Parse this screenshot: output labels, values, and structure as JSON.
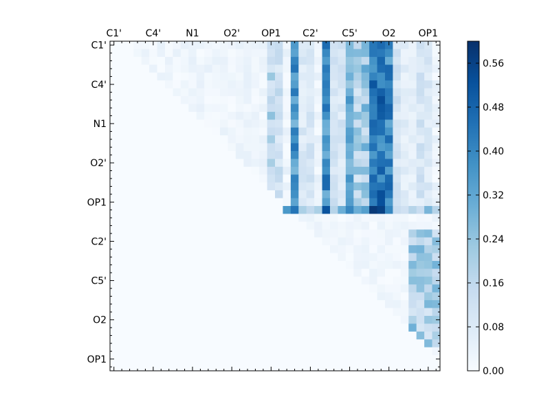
{
  "chart_data": {
    "type": "heatmap",
    "title": "",
    "xlabel": "",
    "ylabel": "",
    "grid_size": 42,
    "x_tick_labels": [
      "C1'",
      "C4'",
      "N1",
      "O2'",
      "OP1",
      "C2'",
      "C5'",
      "O2",
      "OP1"
    ],
    "y_tick_labels": [
      "C1'",
      "C4'",
      "N1",
      "O2'",
      "OP1",
      "C2'",
      "C5'",
      "O2",
      "OP1"
    ],
    "label_every": 5,
    "colorbar": {
      "ticks": [
        0.0,
        0.08,
        0.16,
        0.24,
        0.32,
        0.4,
        0.48,
        0.56
      ],
      "tick_labels": [
        "0.00",
        "0.08",
        "0.16",
        "0.24",
        "0.32",
        "0.40",
        "0.48",
        "0.56"
      ],
      "range": [
        0,
        0.6
      ],
      "colormap": "Blues",
      "stops": [
        "#f7fbff",
        "#deebf7",
        "#c6dbef",
        "#9ecae1",
        "#6baed6",
        "#4292c6",
        "#2171b5",
        "#08519c",
        "#08306b"
      ]
    },
    "value_range": [
      0,
      0.6
    ],
    "strong_columns": [
      {
        "col": 23,
        "value": 0.36
      },
      {
        "col": 27,
        "value": 0.38
      },
      {
        "col": 30,
        "value": 0.3
      },
      {
        "col": 33,
        "value": 0.42
      },
      {
        "col": 34,
        "value": 0.44
      },
      {
        "col": 35,
        "value": 0.4
      }
    ],
    "mid_columns": [
      {
        "col": 20,
        "value": 0.18
      },
      {
        "col": 21,
        "value": 0.12
      },
      {
        "col": 24,
        "value": 0.08
      },
      {
        "col": 25,
        "value": 0.1
      },
      {
        "col": 28,
        "value": 0.1
      },
      {
        "col": 29,
        "value": 0.09
      },
      {
        "col": 31,
        "value": 0.18
      },
      {
        "col": 32,
        "value": 0.22
      },
      {
        "col": 36,
        "value": 0.1
      },
      {
        "col": 37,
        "value": 0.06
      },
      {
        "col": 38,
        "value": 0.05
      },
      {
        "col": 39,
        "value": 0.1
      },
      {
        "col": 40,
        "value": 0.08
      }
    ],
    "strong_row": {
      "row": 21,
      "values_by_col": {
        "22": 0.36,
        "23": 0.44,
        "24": 0.2,
        "25": 0.16,
        "26": 0.2,
        "27": 0.52,
        "28": 0.18,
        "29": 0.3,
        "30": 0.4,
        "31": 0.3,
        "32": 0.34,
        "33": 0.58,
        "34": 0.56,
        "35": 0.4,
        "36": 0.14,
        "37": 0.12,
        "38": 0.18,
        "39": 0.14,
        "40": 0.28,
        "41": 0.18
      }
    },
    "lower_right_block": {
      "rows": [
        24,
        38
      ],
      "cols": [
        38,
        41
      ],
      "value": 0.26
    }
  }
}
